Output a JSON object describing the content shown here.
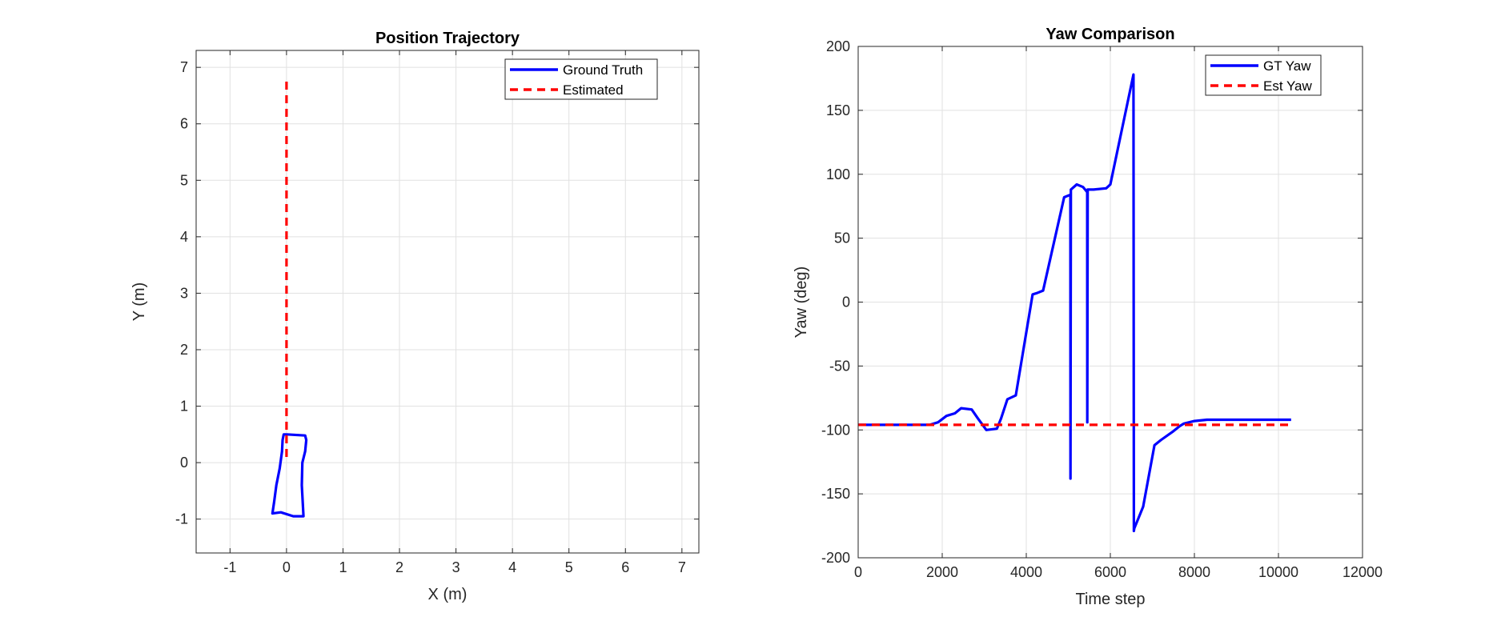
{
  "chart_data": [
    {
      "type": "line",
      "title": "Position Trajectory",
      "xlabel": "X (m)",
      "ylabel": "Y (m)",
      "xlim": [
        -1.6,
        7.3
      ],
      "ylim": [
        -1.6,
        7.3
      ],
      "xticks": [
        -1,
        0,
        1,
        2,
        3,
        4,
        5,
        6,
        7
      ],
      "yticks": [
        -1,
        0,
        1,
        2,
        3,
        4,
        5,
        6,
        7
      ],
      "grid": true,
      "legend_position": "top-right",
      "series": [
        {
          "name": "Ground Truth",
          "color": "#0000ff",
          "style": "solid",
          "x": [
            0.0,
            0.33,
            0.35,
            0.33,
            0.28,
            0.27,
            0.3,
            0.12,
            -0.1,
            -0.25,
            -0.22,
            -0.18,
            -0.12,
            -0.08,
            -0.07,
            -0.05,
            0.0
          ],
          "y": [
            0.5,
            0.48,
            0.4,
            0.2,
            0.0,
            -0.4,
            -0.95,
            -0.95,
            -0.88,
            -0.9,
            -0.7,
            -0.4,
            -0.1,
            0.2,
            0.4,
            0.5,
            0.5
          ]
        },
        {
          "name": "Estimated",
          "color": "#ff0000",
          "style": "dashed",
          "x": [
            0.0,
            0.0
          ],
          "y": [
            0.1,
            6.75
          ]
        }
      ]
    },
    {
      "type": "line",
      "title": "Yaw Comparison",
      "xlabel": "Time step",
      "ylabel": "Yaw (deg)",
      "xlim": [
        0,
        12000
      ],
      "ylim": [
        -200,
        200
      ],
      "xticks": [
        0,
        2000,
        4000,
        6000,
        8000,
        10000,
        12000
      ],
      "yticks": [
        -200,
        -150,
        -100,
        -50,
        0,
        50,
        100,
        150,
        200
      ],
      "grid": true,
      "legend_position": "top-right",
      "series": [
        {
          "name": "GT Yaw",
          "color": "#0000ff",
          "style": "solid",
          "x": [
            0,
            1700,
            1900,
            2100,
            2300,
            2450,
            2700,
            2850,
            3050,
            3300,
            3400,
            3550,
            3750,
            4150,
            4250,
            4400,
            4900,
            5050,
            5051,
            5060,
            5200,
            5350,
            5450,
            5451,
            5460,
            5600,
            5900,
            6000,
            6550,
            6560,
            6570,
            6780,
            7050,
            7200,
            7500,
            7650,
            7750,
            8000,
            8300,
            10300
          ],
          "y": [
            -96,
            -96,
            -94,
            -89,
            -87,
            -83,
            -84,
            -91,
            -100,
            -99,
            -91,
            -76,
            -73,
            6,
            7,
            9,
            82,
            84,
            -138,
            88,
            92,
            90,
            86,
            -94,
            88,
            88,
            89,
            92,
            178,
            -179,
            -177,
            -160,
            -112,
            -108,
            -101,
            -97,
            -95,
            -93,
            -92,
            -92
          ]
        },
        {
          "name": "Est Yaw",
          "color": "#ff0000",
          "style": "dashed",
          "x": [
            0,
            10300
          ],
          "y": [
            -96,
            -96
          ]
        }
      ]
    }
  ]
}
